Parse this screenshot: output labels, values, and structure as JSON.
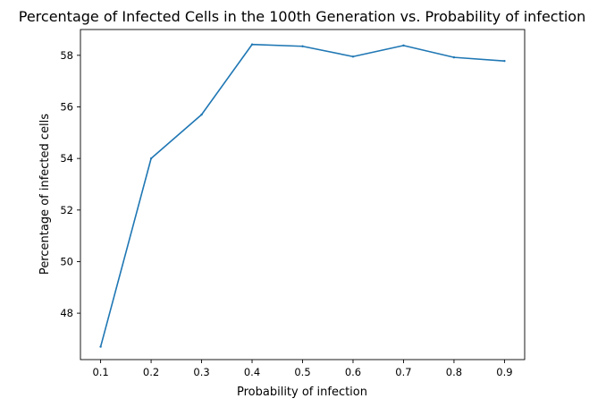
{
  "chart_data": {
    "type": "line",
    "title": "Percentage of Infected Cells in the 100th Generation vs. Probability of infection",
    "xlabel": "Probability of infection",
    "ylabel": "Percentage of infected cells",
    "x": [
      0.1,
      0.2,
      0.3,
      0.4,
      0.5,
      0.6,
      0.7,
      0.8,
      0.9
    ],
    "xticks": [
      "0.1",
      "0.2",
      "0.3",
      "0.4",
      "0.5",
      "0.6",
      "0.7",
      "0.8",
      "0.9"
    ],
    "yticks": [
      "48",
      "50",
      "52",
      "54",
      "56",
      "58"
    ],
    "xlim": [
      0.06,
      0.94
    ],
    "ylim": [
      46.2,
      59.0
    ],
    "grid": false,
    "series": [
      {
        "color": "#1f77b4",
        "values": [
          46.7,
          54.0,
          55.7,
          58.42,
          58.35,
          57.95,
          58.38,
          57.92,
          57.78
        ]
      }
    ]
  }
}
